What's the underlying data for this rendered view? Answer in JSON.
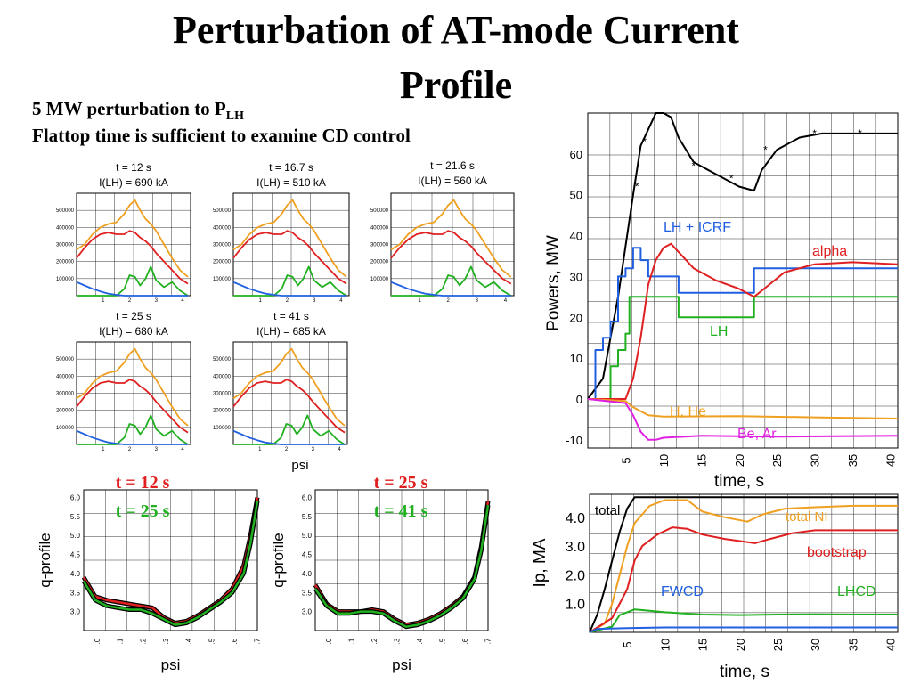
{
  "slide": {
    "title_line1": "Perturbation of AT-mode Current",
    "title_line2": "Profile",
    "subtitle1_main": "5 MW perturbation to P",
    "subtitle1_sub": "LH",
    "subtitle2": "Flattop time is sufficient to examine CD control"
  },
  "colors": {
    "orange": "#f0a020",
    "red": "#e02020",
    "green": "#20b020",
    "blue": "#2060e0",
    "black": "#000000",
    "magenta": "#e020e0"
  },
  "chart_data": [
    {
      "id": "profiles",
      "type": "line",
      "panels": [
        {
          "t_label": "t = 12 s",
          "i_label": "I(LH) = 690 kA"
        },
        {
          "t_label": "t = 16.7 s",
          "i_label": "I(LH) = 510 kA"
        },
        {
          "t_label": "t = 21.6 s",
          "i_label": "I(LH) = 560 kA"
        },
        {
          "t_label": "t = 25 s",
          "i_label": "I(LH) = 680 kA"
        },
        {
          "t_label": "t = 41 s",
          "i_label": "I(LH) = 685 kA"
        }
      ],
      "ytick_labels": [
        "500000",
        "400000",
        "300000",
        "200000",
        "100000"
      ],
      "xtick_labels": [
        "1",
        "2",
        "3",
        "4"
      ],
      "xlabel": "psi",
      "x": [
        0,
        0.3,
        0.6,
        0.9,
        1.2,
        1.5,
        1.8,
        2.0,
        2.2,
        2.4,
        2.6,
        2.8,
        3.0,
        3.3,
        3.6,
        3.9,
        4.2
      ],
      "ylim": [
        0,
        600000
      ],
      "series": [
        {
          "color": "orange",
          "values": [
            270000,
            300000,
            360000,
            400000,
            420000,
            430000,
            480000,
            530000,
            560000,
            500000,
            450000,
            420000,
            380000,
            300000,
            220000,
            150000,
            110000
          ]
        },
        {
          "color": "red",
          "values": [
            220000,
            280000,
            330000,
            360000,
            370000,
            360000,
            360000,
            380000,
            370000,
            340000,
            320000,
            290000,
            250000,
            200000,
            150000,
            100000,
            70000
          ]
        },
        {
          "color": "green",
          "values": [
            0,
            0,
            0,
            0,
            0,
            0,
            40000,
            120000,
            110000,
            60000,
            100000,
            170000,
            90000,
            50000,
            80000,
            30000,
            0
          ]
        },
        {
          "color": "blue",
          "values": [
            80000,
            60000,
            40000,
            25000,
            12000,
            5000,
            0,
            0,
            0,
            0,
            0,
            0,
            0,
            0,
            0,
            0,
            0
          ]
        }
      ]
    },
    {
      "id": "q_profile_1",
      "type": "line",
      "ylabel": "q-profile",
      "xlabel": "psi",
      "time_labels": [
        {
          "text": "t = 12 s",
          "color": "red"
        },
        {
          "text": "t = 25 s",
          "color": "green"
        }
      ],
      "ytick_labels": [
        "6.0",
        "5.5",
        "5.0",
        "4.5",
        "4.0",
        "3.5",
        "3.0"
      ],
      "xtick_labels": [
        ".0",
        ".1",
        ".2",
        ".3",
        ".4",
        ".5",
        ".6",
        ".7"
      ],
      "x": [
        0,
        0.05,
        0.1,
        0.15,
        0.2,
        0.25,
        0.3,
        0.35,
        0.4,
        0.45,
        0.5,
        0.55,
        0.6,
        0.65,
        0.7,
        0.73,
        0.76
      ],
      "ylim": [
        2.5,
        6.2
      ],
      "series": [
        {
          "color": "red",
          "values": [
            3.9,
            3.4,
            3.3,
            3.25,
            3.2,
            3.15,
            3.1,
            2.85,
            2.7,
            2.75,
            2.9,
            3.1,
            3.3,
            3.6,
            4.2,
            5.0,
            6.0
          ]
        },
        {
          "color": "green",
          "values": [
            3.8,
            3.3,
            3.15,
            3.1,
            3.05,
            3.05,
            2.95,
            2.8,
            2.65,
            2.7,
            2.85,
            3.05,
            3.25,
            3.5,
            4.0,
            4.8,
            5.9
          ]
        }
      ]
    },
    {
      "id": "q_profile_2",
      "type": "line",
      "ylabel": "q-profile",
      "xlabel": "psi",
      "time_labels": [
        {
          "text": "t = 25 s",
          "color": "red"
        },
        {
          "text": "t = 41 s",
          "color": "green"
        }
      ],
      "ytick_labels": [
        "6.0",
        "5.5",
        "5.0",
        "4.5",
        "4.0",
        "3.5",
        "3.0"
      ],
      "xtick_labels": [
        ".0",
        ".1",
        ".2",
        ".3",
        ".4",
        ".5",
        ".6",
        ".7"
      ],
      "x": [
        0,
        0.05,
        0.1,
        0.15,
        0.2,
        0.25,
        0.3,
        0.35,
        0.4,
        0.45,
        0.5,
        0.55,
        0.6,
        0.65,
        0.7,
        0.73,
        0.76
      ],
      "ylim": [
        2.5,
        6.2
      ],
      "series": [
        {
          "color": "red",
          "values": [
            3.7,
            3.2,
            3.0,
            3.0,
            3.0,
            3.05,
            3.0,
            2.8,
            2.65,
            2.7,
            2.8,
            2.95,
            3.15,
            3.4,
            3.9,
            4.7,
            5.9
          ]
        },
        {
          "color": "green",
          "values": [
            3.6,
            3.15,
            2.95,
            2.95,
            3.0,
            3.0,
            2.95,
            2.75,
            2.6,
            2.65,
            2.75,
            2.9,
            3.1,
            3.35,
            3.85,
            4.6,
            5.8
          ]
        }
      ]
    },
    {
      "id": "powers",
      "type": "line",
      "ylabel": "Powers, MW",
      "xlabel": "time, s",
      "xlim": [
        0,
        41
      ],
      "ylim": [
        -12,
        70
      ],
      "ytick_labels": [
        "60",
        "50",
        "40",
        "30",
        "20",
        "10",
        "0",
        "-10"
      ],
      "xtick_labels": [
        "5",
        "10",
        "15",
        "20",
        "25",
        "30",
        "35",
        "40"
      ],
      "labels": {
        "lh_icrf": "LH + ICRF",
        "alpha": "alpha",
        "lh": "LH",
        "h_he": "H, He",
        "be_ar": "Be, Ar"
      },
      "series": [
        {
          "color": "black",
          "points": [
            [
              0,
              0
            ],
            [
              2,
              5
            ],
            [
              4,
              25
            ],
            [
              6,
              50
            ],
            [
              7,
              62
            ],
            [
              8,
              66
            ],
            [
              9,
              70
            ],
            [
              10,
              70
            ],
            [
              11,
              69
            ],
            [
              12,
              64
            ],
            [
              14,
              58
            ],
            [
              16,
              56
            ],
            [
              18,
              54
            ],
            [
              20,
              52
            ],
            [
              22,
              51
            ],
            [
              23,
              56
            ],
            [
              25,
              61
            ],
            [
              28,
              64
            ],
            [
              31,
              65
            ],
            [
              35,
              65
            ],
            [
              41,
              65
            ]
          ]
        },
        {
          "color": "blue",
          "points": [
            [
              0,
              0
            ],
            [
              1,
              0
            ],
            [
              1,
              12
            ],
            [
              2,
              12
            ],
            [
              2,
              15
            ],
            [
              3,
              15
            ],
            [
              3,
              19
            ],
            [
              4,
              19
            ],
            [
              4,
              30
            ],
            [
              5,
              30
            ],
            [
              5,
              32
            ],
            [
              6,
              32
            ],
            [
              6,
              37
            ],
            [
              7,
              37
            ],
            [
              7,
              34
            ],
            [
              8,
              34
            ],
            [
              8,
              30
            ],
            [
              12,
              30
            ],
            [
              12,
              26
            ],
            [
              22,
              26
            ],
            [
              22,
              32
            ],
            [
              41,
              32
            ]
          ]
        },
        {
          "color": "green",
          "points": [
            [
              0,
              0
            ],
            [
              3,
              0
            ],
            [
              3,
              8
            ],
            [
              4,
              8
            ],
            [
              4,
              12
            ],
            [
              5,
              12
            ],
            [
              5,
              16
            ],
            [
              5.5,
              16
            ],
            [
              5.5,
              25
            ],
            [
              12,
              25
            ],
            [
              12,
              20
            ],
            [
              22,
              20
            ],
            [
              22,
              25
            ],
            [
              41,
              25
            ]
          ]
        },
        {
          "color": "red",
          "points": [
            [
              0,
              0
            ],
            [
              5,
              0
            ],
            [
              6,
              5
            ],
            [
              7,
              15
            ],
            [
              8,
              28
            ],
            [
              9,
              34
            ],
            [
              10,
              37
            ],
            [
              11,
              38
            ],
            [
              12,
              36
            ],
            [
              14,
              32
            ],
            [
              17,
              29
            ],
            [
              20,
              27
            ],
            [
              22,
              25
            ],
            [
              24,
              28
            ],
            [
              26,
              31
            ],
            [
              30,
              33
            ],
            [
              35,
              33.5
            ],
            [
              41,
              33
            ]
          ]
        },
        {
          "color": "orange",
          "points": [
            [
              0,
              0
            ],
            [
              5,
              -0.5
            ],
            [
              6,
              -2
            ],
            [
              7,
              -3
            ],
            [
              8,
              -4
            ],
            [
              10,
              -4.3
            ],
            [
              20,
              -4.2
            ],
            [
              30,
              -4.5
            ],
            [
              41,
              -4.8
            ]
          ]
        },
        {
          "color": "magenta",
          "points": [
            [
              0,
              0
            ],
            [
              5,
              -1
            ],
            [
              6,
              -4
            ],
            [
              7,
              -8
            ],
            [
              8,
              -10
            ],
            [
              9,
              -10
            ],
            [
              10,
              -9.5
            ],
            [
              15,
              -9
            ],
            [
              25,
              -9.2
            ],
            [
              41,
              -9
            ]
          ]
        }
      ]
    },
    {
      "id": "currents",
      "type": "line",
      "ylabel": "Ip, MA",
      "xlabel": "time, s",
      "xlim": [
        0,
        41
      ],
      "ylim": [
        0,
        4.8
      ],
      "ytick_labels": [
        "4.0",
        "3.0",
        "2.0",
        "1.0"
      ],
      "xtick_labels": [
        "5",
        "10",
        "15",
        "20",
        "25",
        "30",
        "35",
        "40"
      ],
      "labels": {
        "total": "total",
        "total_ni": "total NI",
        "bootstrap": "bootstrap",
        "fwcd": "FWCD",
        "lhcd": "LHCD"
      },
      "series": [
        {
          "color": "black",
          "points": [
            [
              0,
              0
            ],
            [
              1,
              0.6
            ],
            [
              2,
              1.5
            ],
            [
              3,
              2.5
            ],
            [
              4,
              3.5
            ],
            [
              5,
              4.3
            ],
            [
              6,
              4.7
            ],
            [
              8,
              4.7
            ],
            [
              41,
              4.7
            ]
          ]
        },
        {
          "color": "orange",
          "points": [
            [
              0,
              0
            ],
            [
              2,
              0.3
            ],
            [
              3,
              1.0
            ],
            [
              4,
              2.0
            ],
            [
              5,
              3.0
            ],
            [
              6,
              3.8
            ],
            [
              7,
              4.1
            ],
            [
              8,
              4.4
            ],
            [
              10,
              4.6
            ],
            [
              13,
              4.6
            ],
            [
              15,
              4.2
            ],
            [
              18,
              4.0
            ],
            [
              21,
              3.85
            ],
            [
              23,
              4.1
            ],
            [
              26,
              4.3
            ],
            [
              30,
              4.35
            ],
            [
              35,
              4.4
            ],
            [
              41,
              4.4
            ]
          ]
        },
        {
          "color": "red",
          "points": [
            [
              0,
              0
            ],
            [
              3,
              0.5
            ],
            [
              5,
              1.5
            ],
            [
              6,
              2.5
            ],
            [
              7,
              3.0
            ],
            [
              9,
              3.4
            ],
            [
              11,
              3.65
            ],
            [
              13,
              3.6
            ],
            [
              15,
              3.4
            ],
            [
              18,
              3.25
            ],
            [
              22,
              3.1
            ],
            [
              24,
              3.25
            ],
            [
              27,
              3.45
            ],
            [
              30,
              3.55
            ],
            [
              35,
              3.55
            ],
            [
              41,
              3.55
            ]
          ]
        },
        {
          "color": "green",
          "points": [
            [
              0,
              0
            ],
            [
              3,
              0.2
            ],
            [
              4,
              0.6
            ],
            [
              5,
              0.7
            ],
            [
              6,
              0.8
            ],
            [
              8,
              0.75
            ],
            [
              10,
              0.7
            ],
            [
              15,
              0.62
            ],
            [
              20,
              0.6
            ],
            [
              25,
              0.62
            ],
            [
              30,
              0.63
            ],
            [
              35,
              0.62
            ],
            [
              41,
              0.62
            ]
          ]
        },
        {
          "color": "blue",
          "points": [
            [
              0,
              0
            ],
            [
              1,
              0.12
            ],
            [
              5,
              0.15
            ],
            [
              10,
              0.17
            ],
            [
              20,
              0.17
            ],
            [
              41,
              0.17
            ]
          ]
        }
      ]
    }
  ]
}
